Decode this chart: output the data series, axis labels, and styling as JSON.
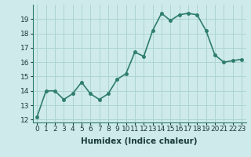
{
  "x": [
    0,
    1,
    2,
    3,
    4,
    5,
    6,
    7,
    8,
    9,
    10,
    11,
    12,
    13,
    14,
    15,
    16,
    17,
    18,
    19,
    20,
    21,
    22,
    23
  ],
  "y": [
    12.2,
    14.0,
    14.0,
    13.4,
    13.8,
    14.6,
    13.8,
    13.4,
    13.8,
    14.8,
    15.2,
    16.7,
    16.4,
    18.2,
    19.4,
    18.9,
    19.3,
    19.4,
    19.3,
    18.2,
    16.5,
    16.0,
    16.1,
    16.2
  ],
  "xlabel": "Humidex (Indice chaleur)",
  "line_color": "#2e7d6e",
  "marker_color": "#2e7d6e",
  "bg_color": "#ceeaea",
  "grid_color": "#add4d4",
  "ylim": [
    11.8,
    20.0
  ],
  "xlim": [
    -0.5,
    23.5
  ],
  "yticks": [
    12,
    13,
    14,
    15,
    16,
    17,
    18,
    19
  ],
  "xticks": [
    0,
    1,
    2,
    3,
    4,
    5,
    6,
    7,
    8,
    9,
    10,
    11,
    12,
    13,
    14,
    15,
    16,
    17,
    18,
    19,
    20,
    21,
    22,
    23
  ],
  "xtick_labels": [
    "0",
    "1",
    "2",
    "3",
    "4",
    "5",
    "6",
    "7",
    "8",
    "9",
    "10",
    "11",
    "12",
    "13",
    "14",
    "15",
    "16",
    "17",
    "18",
    "19",
    "20",
    "21",
    "22",
    "23"
  ],
  "xlabel_fontsize": 7.5,
  "tick_fontsize": 6.5,
  "line_width": 1.2,
  "marker_size": 2.5
}
